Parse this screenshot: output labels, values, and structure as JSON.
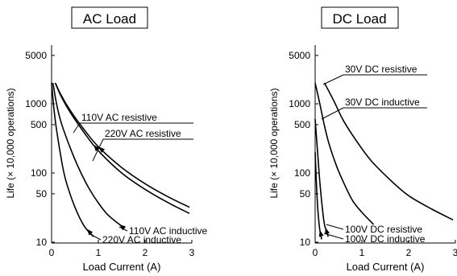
{
  "chart_data": [
    {
      "type": "line",
      "title": "AC Load",
      "xlabel": "Load Current (A)",
      "ylabel": "Life (× 10,000 operations)",
      "xlim": [
        0,
        3
      ],
      "ylim": [
        10,
        5000
      ],
      "yscale": "log",
      "x_ticks": [
        "0",
        "1",
        "2",
        "3"
      ],
      "y_ticks": [
        "10",
        "50",
        "100",
        "500",
        "1000",
        "5000"
      ],
      "grid": false,
      "series": [
        {
          "name": "110V AC resistive",
          "x": [
            0.08,
            0.2,
            0.4,
            0.7,
            1.0,
            1.5,
            2.0,
            2.5,
            2.95
          ],
          "y": [
            2000,
            1350,
            800,
            420,
            240,
            120,
            70,
            45,
            32
          ]
        },
        {
          "name": "220V AC resistive",
          "x": [
            0.08,
            0.2,
            0.4,
            0.7,
            1.0,
            1.5,
            2.0,
            2.5,
            2.95
          ],
          "y": [
            2000,
            1300,
            750,
            380,
            210,
            100,
            58,
            37,
            26
          ]
        },
        {
          "name": "110V AC inductive",
          "x": [
            0.03,
            0.1,
            0.2,
            0.4,
            0.6,
            0.8,
            1.0,
            1.2,
            1.5
          ],
          "y": [
            2000,
            1050,
            550,
            230,
            110,
            60,
            37,
            25,
            17
          ]
        },
        {
          "name": "220V AC inductive",
          "x": [
            0.0,
            0.05,
            0.1,
            0.2,
            0.3,
            0.5,
            0.7,
            0.9
          ],
          "y": [
            2000,
            850,
            450,
            170,
            80,
            32,
            17,
            12
          ]
        }
      ],
      "labels": [
        {
          "text": "110V AC resistive"
        },
        {
          "text": "220V AC resistive"
        },
        {
          "text": "110V AC inductive"
        },
        {
          "text": "220V AC inductive"
        }
      ]
    },
    {
      "type": "line",
      "title": "DC Load",
      "xlabel": "Load Current (A)",
      "ylabel": "Life (× 10,000 operations)",
      "xlim": [
        0,
        3
      ],
      "ylim": [
        10,
        5000
      ],
      "yscale": "log",
      "x_ticks": [
        "0",
        "1",
        "2",
        "3"
      ],
      "y_ticks": [
        "10",
        "50",
        "100",
        "500",
        "1000",
        "5000"
      ],
      "grid": false,
      "series": [
        {
          "name": "30V DC resistive",
          "x": [
            0.2,
            0.4,
            0.6,
            0.9,
            1.2,
            1.6,
            2.0,
            2.5,
            2.95
          ],
          "y": [
            2000,
            1100,
            580,
            280,
            150,
            80,
            47,
            30,
            21
          ]
        },
        {
          "name": "30V DC inductive",
          "x": [
            0.0,
            0.1,
            0.2,
            0.3,
            0.45,
            0.6,
            0.8,
            1.0,
            1.25
          ],
          "y": [
            2000,
            1000,
            480,
            260,
            130,
            75,
            40,
            27,
            18
          ]
        },
        {
          "name": "100V DC resistive",
          "x": [
            0.0,
            0.05,
            0.1,
            0.15,
            0.2,
            0.28
          ],
          "y": [
            600,
            210,
            75,
            33,
            18,
            12
          ]
        },
        {
          "name": "100V DC inductive",
          "x": [
            0.0,
            0.03,
            0.06,
            0.1,
            0.14
          ],
          "y": [
            200,
            65,
            28,
            15,
            11
          ]
        }
      ],
      "labels": [
        {
          "text": "30V DC resistive"
        },
        {
          "text": "30V DC inductive"
        },
        {
          "text": "100V DC resistive"
        },
        {
          "text": "100V DC inductive"
        }
      ]
    }
  ]
}
